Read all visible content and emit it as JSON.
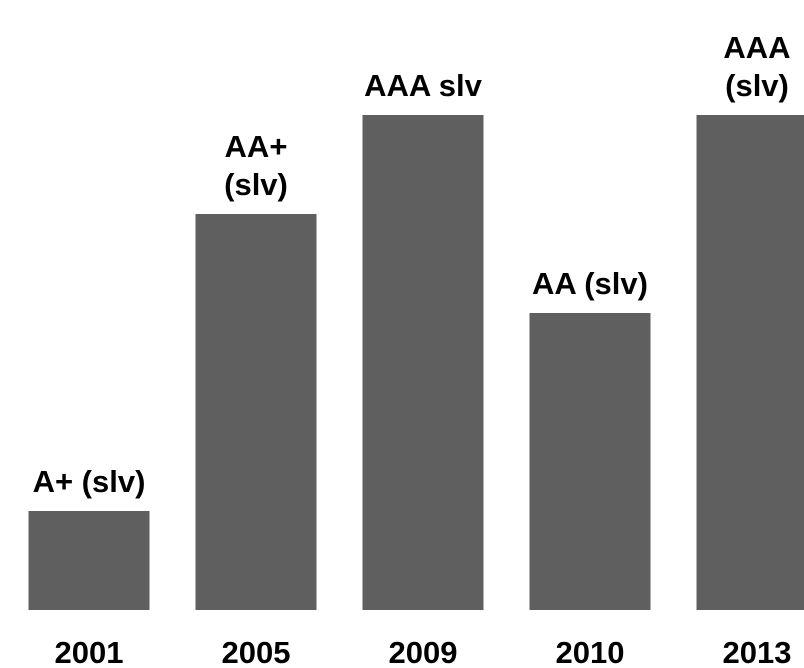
{
  "chart_data": {
    "type": "bar",
    "categories": [
      "2001",
      "2005",
      "2009",
      "2010",
      "2013"
    ],
    "values": [
      1,
      4,
      5,
      3,
      5
    ],
    "value_labels": [
      "A+ (slv)",
      "AA+\n(slv)",
      "AAA slv",
      "AA (slv)",
      "AAA\n(slv)"
    ],
    "color": "#5f5f5f",
    "ylim": [
      0,
      5
    ]
  }
}
